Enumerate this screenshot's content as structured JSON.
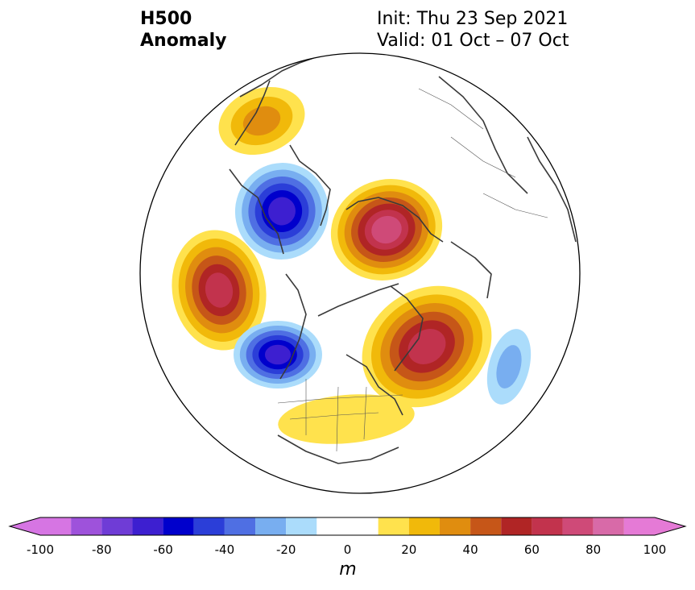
{
  "header": {
    "variable": "H500",
    "kind": "Anomaly",
    "init": "Init: Thu 23 Sep 2021",
    "valid": "Valid: 01 Oct – 07 Oct"
  },
  "colorbar": {
    "unit": "m",
    "tick_labels": [
      "-100",
      "-80",
      "-60",
      "-40",
      "-20",
      "0",
      "20",
      "40",
      "60",
      "80",
      "100"
    ],
    "levels": [
      -100,
      -90,
      -80,
      -70,
      -60,
      -50,
      -40,
      -30,
      -20,
      -10,
      10,
      20,
      30,
      40,
      50,
      60,
      70,
      80,
      90,
      100
    ],
    "colors": [
      "#d675e3",
      "#9e52db",
      "#6f3cd6",
      "#3d1fd0",
      "#0000cc",
      "#2b3ed8",
      "#4f6fe3",
      "#78aef0",
      "#abdcfb",
      "#ffffff",
      "#ffe24d",
      "#f1b90a",
      "#e08d0f",
      "#c65618",
      "#b02525",
      "#c2334d",
      "#cf4a78",
      "#d86aa8",
      "#e57ad6"
    ],
    "under_color": "#d675e3",
    "over_color": "#e57ad6"
  },
  "anomaly_centers": [
    {
      "name": "gulf-of-alaska-ridge",
      "sign": "positive",
      "peak": 65
    },
    {
      "name": "eastern-russia-trough",
      "sign": "negative",
      "peak": -60
    },
    {
      "name": "central-siberia-ridge",
      "sign": "positive",
      "peak": 75
    },
    {
      "name": "bering-ridge-north",
      "sign": "positive",
      "peak": 30
    },
    {
      "name": "hudson-bay-trough",
      "sign": "negative",
      "peak": -60
    },
    {
      "name": "north-atlantic-ridge",
      "sign": "positive",
      "peak": 60
    },
    {
      "name": "central-us-ridge",
      "sign": "positive",
      "peak": 15
    },
    {
      "name": "central-atlantic-trough",
      "sign": "negative",
      "peak": -20
    }
  ]
}
